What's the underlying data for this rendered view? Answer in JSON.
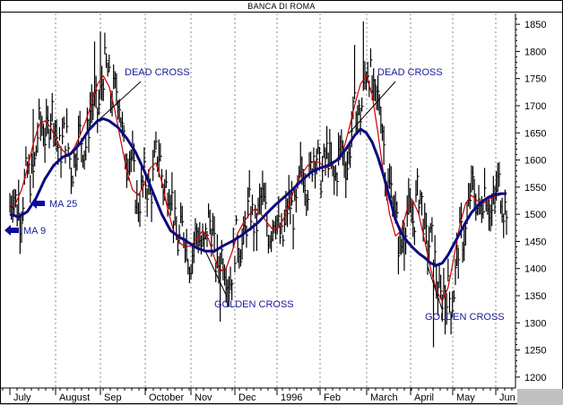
{
  "window": {
    "title": "BANCA DI ROMA"
  },
  "chart_data": {
    "type": "line",
    "title": "BANCA DI ROMA",
    "ylim": [
      1180,
      1870
    ],
    "y_ticks": [
      1200,
      1250,
      1300,
      1350,
      1400,
      1450,
      1500,
      1550,
      1600,
      1650,
      1700,
      1750,
      1800,
      1850
    ],
    "x_tick_labels": [
      "July",
      "August",
      "Sep",
      "October",
      "Nov",
      "Dec",
      "1996",
      "Feb",
      "March",
      "April",
      "May",
      "Jun"
    ],
    "grid": "vertical-dotted",
    "series": [
      {
        "name": "MA 9",
        "color": "#cc0000",
        "points": [
          [
            0,
            1515
          ],
          [
            4,
            1520
          ],
          [
            8,
            1545
          ],
          [
            12,
            1585
          ],
          [
            16,
            1630
          ],
          [
            20,
            1665
          ],
          [
            24,
            1672
          ],
          [
            28,
            1660
          ],
          [
            32,
            1635
          ],
          [
            36,
            1618
          ],
          [
            40,
            1608
          ],
          [
            44,
            1622
          ],
          [
            48,
            1645
          ],
          [
            52,
            1672
          ],
          [
            56,
            1705
          ],
          [
            60,
            1740
          ],
          [
            64,
            1755
          ],
          [
            68,
            1735
          ],
          [
            72,
            1690
          ],
          [
            76,
            1635
          ],
          [
            80,
            1580
          ],
          [
            84,
            1545
          ],
          [
            88,
            1535
          ],
          [
            92,
            1555
          ],
          [
            96,
            1585
          ],
          [
            100,
            1595
          ],
          [
            104,
            1560
          ],
          [
            108,
            1510
          ],
          [
            112,
            1470
          ],
          [
            116,
            1448
          ],
          [
            120,
            1440
          ],
          [
            124,
            1442
          ],
          [
            128,
            1455
          ],
          [
            132,
            1470
          ],
          [
            136,
            1455
          ],
          [
            140,
            1420
          ],
          [
            144,
            1395
          ],
          [
            148,
            1400
          ],
          [
            152,
            1430
          ],
          [
            156,
            1465
          ],
          [
            160,
            1485
          ],
          [
            164,
            1500
          ],
          [
            168,
            1510
          ],
          [
            172,
            1500
          ],
          [
            176,
            1485
          ],
          [
            180,
            1472
          ],
          [
            184,
            1475
          ],
          [
            188,
            1495
          ],
          [
            192,
            1525
          ],
          [
            196,
            1555
          ],
          [
            200,
            1575
          ],
          [
            204,
            1590
          ],
          [
            208,
            1598
          ],
          [
            212,
            1595
          ],
          [
            216,
            1585
          ],
          [
            220,
            1590
          ],
          [
            224,
            1600
          ],
          [
            228,
            1615
          ],
          [
            232,
            1655
          ],
          [
            236,
            1700
          ],
          [
            240,
            1740
          ],
          [
            244,
            1755
          ],
          [
            248,
            1720
          ],
          [
            252,
            1650
          ],
          [
            256,
            1570
          ],
          [
            260,
            1500
          ],
          [
            264,
            1460
          ],
          [
            268,
            1470
          ],
          [
            272,
            1510
          ],
          [
            276,
            1525
          ],
          [
            280,
            1500
          ],
          [
            284,
            1450
          ],
          [
            288,
            1400
          ],
          [
            292,
            1360
          ],
          [
            296,
            1340
          ],
          [
            300,
            1365
          ],
          [
            304,
            1420
          ],
          [
            308,
            1480
          ],
          [
            312,
            1520
          ],
          [
            316,
            1535
          ],
          [
            320,
            1525
          ],
          [
            324,
            1520
          ],
          [
            328,
            1528
          ],
          [
            332,
            1533
          ],
          [
            336,
            1536
          ],
          [
            340,
            1540
          ]
        ]
      },
      {
        "name": "MA 25",
        "color": "#0a0a80",
        "points": [
          [
            0,
            1500
          ],
          [
            6,
            1495
          ],
          [
            12,
            1505
          ],
          [
            18,
            1530
          ],
          [
            24,
            1565
          ],
          [
            30,
            1590
          ],
          [
            36,
            1605
          ],
          [
            42,
            1612
          ],
          [
            48,
            1630
          ],
          [
            54,
            1655
          ],
          [
            60,
            1672
          ],
          [
            64,
            1676
          ],
          [
            68,
            1672
          ],
          [
            74,
            1660
          ],
          [
            80,
            1640
          ],
          [
            86,
            1615
          ],
          [
            92,
            1580
          ],
          [
            98,
            1540
          ],
          [
            104,
            1500
          ],
          [
            110,
            1470
          ],
          [
            116,
            1458
          ],
          [
            120,
            1452
          ],
          [
            124,
            1445
          ],
          [
            128,
            1438
          ],
          [
            134,
            1432
          ],
          [
            140,
            1432
          ],
          [
            146,
            1442
          ],
          [
            152,
            1450
          ],
          [
            158,
            1460
          ],
          [
            164,
            1472
          ],
          [
            170,
            1485
          ],
          [
            176,
            1502
          ],
          [
            182,
            1518
          ],
          [
            188,
            1532
          ],
          [
            194,
            1547
          ],
          [
            200,
            1563
          ],
          [
            206,
            1577
          ],
          [
            212,
            1585
          ],
          [
            218,
            1590
          ],
          [
            224,
            1600
          ],
          [
            230,
            1620
          ],
          [
            236,
            1645
          ],
          [
            240,
            1657
          ],
          [
            244,
            1650
          ],
          [
            248,
            1633
          ],
          [
            252,
            1605
          ],
          [
            256,
            1570
          ],
          [
            260,
            1530
          ],
          [
            264,
            1490
          ],
          [
            268,
            1465
          ],
          [
            272,
            1450
          ],
          [
            276,
            1438
          ],
          [
            280,
            1428
          ],
          [
            284,
            1420
          ],
          [
            288,
            1410
          ],
          [
            292,
            1406
          ],
          [
            296,
            1410
          ],
          [
            300,
            1425
          ],
          [
            304,
            1445
          ],
          [
            308,
            1465
          ],
          [
            312,
            1485
          ],
          [
            316,
            1503
          ],
          [
            320,
            1515
          ],
          [
            324,
            1525
          ],
          [
            328,
            1532
          ],
          [
            332,
            1536
          ],
          [
            336,
            1538
          ],
          [
            340,
            1538
          ]
        ]
      }
    ],
    "price_bars": "daily high-low bars following the close price path from ~1500 in July 1995, peaking near 1800 in August, falling to ~1320 in late October, rising to ~1820 in February 1996, dropping to ~1225 in April, then recovering to ~1530 by late May",
    "annotations": [
      {
        "text": "DEAD CROSS"
      },
      {
        "text": "DEAD CROSS"
      },
      {
        "text": "GOLDEN CROSS"
      },
      {
        "text": "GOLDEN CROSS"
      },
      {
        "text": "MA 25"
      },
      {
        "text": "MA 9"
      }
    ]
  }
}
